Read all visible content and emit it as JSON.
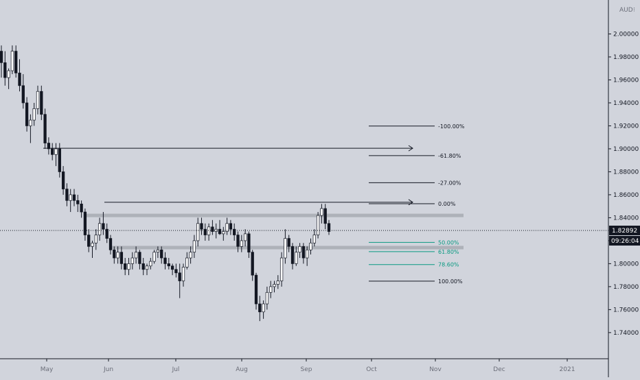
{
  "chart_data": {
    "type": "candlestick",
    "currency": "AUD",
    "y_axis": {
      "ylim": [
        1.725,
        2.02
      ],
      "ticks": [
        "2.00000",
        "1.98000",
        "1.96000",
        "1.94000",
        "1.92000",
        "1.90000",
        "1.88000",
        "1.86000",
        "1.84000",
        "1.82000",
        "1.80000",
        "1.78000",
        "1.76000",
        "1.74000"
      ]
    },
    "x_axis": {
      "ticks": [
        "May",
        "Jun",
        "Jul",
        "Aug",
        "Sep",
        "Oct",
        "Nov",
        "Dec",
        "2021"
      ]
    },
    "last_price": "1.82892",
    "last_value": 1.82892,
    "countdown": "09:26:04",
    "zones": [
      {
        "low": 1.8405,
        "high": 1.8435
      },
      {
        "low": 1.8125,
        "high": 1.8155
      }
    ],
    "fib_levels": [
      {
        "label": "-100.00%",
        "value": 1.9198,
        "color": "#131722"
      },
      {
        "label": "-61.80%",
        "value": 1.8941,
        "color": "#131722"
      },
      {
        "label": "-27.00%",
        "value": 1.8705,
        "color": "#131722"
      },
      {
        "label": "0.00%",
        "value": 1.8522,
        "color": "#131722"
      },
      {
        "label": "50.00%",
        "value": 1.8185,
        "color": "#089981"
      },
      {
        "label": "61.80%",
        "value": 1.8105,
        "color": "#089981"
      },
      {
        "label": "78.60%",
        "value": 1.7992,
        "color": "#089981"
      },
      {
        "label": "100.00%",
        "value": 1.7848,
        "color": "#131722"
      }
    ],
    "arrows": [
      {
        "from_value": 1.9005,
        "to_value": 1.9005
      },
      {
        "from_value": 1.8535,
        "to_value": 1.8535
      }
    ],
    "candles": [
      [
        1.985,
        1.99,
        1.962,
        1.975
      ],
      [
        1.975,
        1.985,
        1.955,
        1.962
      ],
      [
        1.962,
        1.97,
        1.952,
        1.968
      ],
      [
        1.968,
        1.99,
        1.965,
        1.985
      ],
      [
        1.985,
        1.99,
        1.962,
        1.966
      ],
      [
        1.966,
        1.978,
        1.95,
        1.955
      ],
      [
        1.955,
        1.965,
        1.935,
        1.94
      ],
      [
        1.94,
        1.945,
        1.915,
        1.92
      ],
      [
        1.92,
        1.93,
        1.905,
        1.925
      ],
      [
        1.925,
        1.94,
        1.92,
        1.935
      ],
      [
        1.935,
        1.955,
        1.93,
        1.95
      ],
      [
        1.95,
        1.955,
        1.925,
        1.93
      ],
      [
        1.93,
        1.935,
        1.9,
        1.905
      ],
      [
        1.905,
        1.91,
        1.895,
        1.9
      ],
      [
        1.9,
        1.905,
        1.89,
        1.895
      ],
      [
        1.895,
        1.905,
        1.885,
        1.9
      ],
      [
        1.9,
        1.905,
        1.875,
        1.88
      ],
      [
        1.88,
        1.885,
        1.86,
        1.865
      ],
      [
        1.865,
        1.87,
        1.85,
        1.855
      ],
      [
        1.855,
        1.865,
        1.845,
        1.86
      ],
      [
        1.86,
        1.865,
        1.85,
        1.855
      ],
      [
        1.855,
        1.86,
        1.845,
        1.852
      ],
      [
        1.852,
        1.855,
        1.84,
        1.845
      ],
      [
        1.845,
        1.848,
        1.82,
        1.825
      ],
      [
        1.825,
        1.83,
        1.81,
        1.815
      ],
      [
        1.815,
        1.82,
        1.805,
        1.818
      ],
      [
        1.818,
        1.83,
        1.812,
        1.825
      ],
      [
        1.825,
        1.84,
        1.82,
        1.835
      ],
      [
        1.835,
        1.845,
        1.825,
        1.83
      ],
      [
        1.83,
        1.835,
        1.818,
        1.822
      ],
      [
        1.822,
        1.825,
        1.808,
        1.812
      ],
      [
        1.812,
        1.815,
        1.8,
        1.805
      ],
      [
        1.805,
        1.815,
        1.8,
        1.81
      ],
      [
        1.81,
        1.815,
        1.795,
        1.8
      ],
      [
        1.8,
        1.805,
        1.79,
        1.795
      ],
      [
        1.795,
        1.805,
        1.79,
        1.8
      ],
      [
        1.8,
        1.81,
        1.795,
        1.805
      ],
      [
        1.805,
        1.815,
        1.8,
        1.81
      ],
      [
        1.81,
        1.812,
        1.795,
        1.8
      ],
      [
        1.8,
        1.805,
        1.79,
        1.795
      ],
      [
        1.795,
        1.8,
        1.79,
        1.798
      ],
      [
        1.798,
        1.805,
        1.795,
        1.802
      ],
      [
        1.802,
        1.812,
        1.8,
        1.81
      ],
      [
        1.81,
        1.815,
        1.805,
        1.812
      ],
      [
        1.812,
        1.815,
        1.8,
        1.805
      ],
      [
        1.805,
        1.81,
        1.795,
        1.8
      ],
      [
        1.8,
        1.805,
        1.795,
        1.798
      ],
      [
        1.798,
        1.8,
        1.79,
        1.795
      ],
      [
        1.795,
        1.8,
        1.788,
        1.792
      ],
      [
        1.792,
        1.8,
        1.77,
        1.785
      ],
      [
        1.785,
        1.8,
        1.78,
        1.797
      ],
      [
        1.797,
        1.81,
        1.795,
        1.805
      ],
      [
        1.805,
        1.815,
        1.8,
        1.81
      ],
      [
        1.81,
        1.825,
        1.805,
        1.82
      ],
      [
        1.82,
        1.84,
        1.815,
        1.835
      ],
      [
        1.835,
        1.84,
        1.825,
        1.83
      ],
      [
        1.83,
        1.835,
        1.82,
        1.825
      ],
      [
        1.825,
        1.835,
        1.82,
        1.832
      ],
      [
        1.832,
        1.838,
        1.825,
        1.828
      ],
      [
        1.828,
        1.835,
        1.822,
        1.83
      ],
      [
        1.83,
        1.838,
        1.825,
        1.826
      ],
      [
        1.826,
        1.832,
        1.82,
        1.828
      ],
      [
        1.828,
        1.84,
        1.825,
        1.835
      ],
      [
        1.835,
        1.838,
        1.825,
        1.83
      ],
      [
        1.83,
        1.835,
        1.82,
        1.825
      ],
      [
        1.825,
        1.828,
        1.81,
        1.815
      ],
      [
        1.815,
        1.825,
        1.81,
        1.82
      ],
      [
        1.82,
        1.83,
        1.815,
        1.826
      ],
      [
        1.826,
        1.828,
        1.805,
        1.81
      ],
      [
        1.81,
        1.812,
        1.785,
        1.79
      ],
      [
        1.79,
        1.792,
        1.76,
        1.765
      ],
      [
        1.765,
        1.772,
        1.75,
        1.758
      ],
      [
        1.758,
        1.768,
        1.752,
        1.765
      ],
      [
        1.765,
        1.78,
        1.76,
        1.775
      ],
      [
        1.775,
        1.785,
        1.77,
        1.78
      ],
      [
        1.78,
        1.785,
        1.775,
        1.782
      ],
      [
        1.782,
        1.79,
        1.778,
        1.785
      ],
      [
        1.785,
        1.81,
        1.78,
        1.805
      ],
      [
        1.805,
        1.83,
        1.8,
        1.822
      ],
      [
        1.822,
        1.825,
        1.81,
        1.815
      ],
      [
        1.815,
        1.818,
        1.795,
        1.8
      ],
      [
        1.8,
        1.815,
        1.798,
        1.81
      ],
      [
        1.81,
        1.818,
        1.805,
        1.815
      ],
      [
        1.815,
        1.818,
        1.8,
        1.805
      ],
      [
        1.805,
        1.815,
        1.798,
        1.812
      ],
      [
        1.812,
        1.822,
        1.808,
        1.818
      ],
      [
        1.818,
        1.83,
        1.815,
        1.825
      ],
      [
        1.825,
        1.845,
        1.822,
        1.842
      ],
      [
        1.842,
        1.852,
        1.835,
        1.848
      ],
      [
        1.848,
        1.852,
        1.83,
        1.835
      ],
      [
        1.835,
        1.838,
        1.825,
        1.828
      ]
    ]
  }
}
